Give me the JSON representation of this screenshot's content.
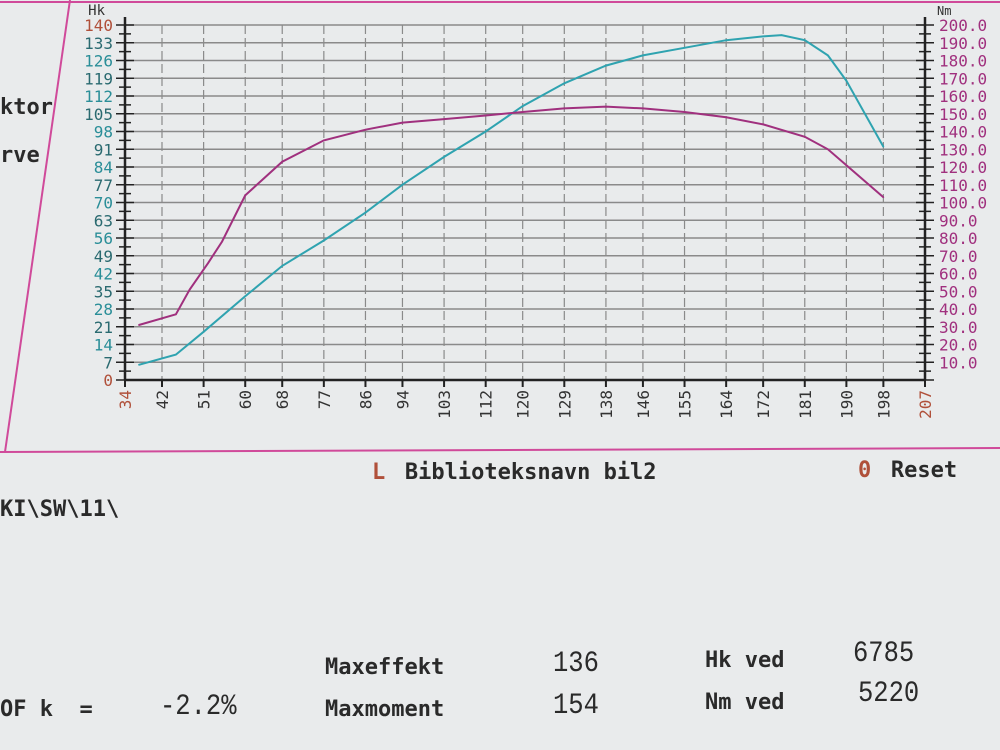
{
  "side_fragments": {
    "line1": "ktor",
    "line2": "rve",
    "path": "KI\\SW\\11\\",
    "factor_label": "OF k  =",
    "factor_value": "-2.2%"
  },
  "menu": {
    "library_key": "L",
    "library_label": "Biblioteksnavn bil2",
    "reset_key": "0",
    "reset_label": "Reset"
  },
  "results": {
    "max_power_label": "Maxeffekt",
    "max_power_value": "136",
    "max_torque_label": "Maxmoment",
    "max_torque_value": "154",
    "hp_at_label": "Hk ved",
    "hp_at_value": "6785",
    "nm_at_label": "Nm ved",
    "nm_at_value": "5220"
  },
  "colors": {
    "power": "#2fa3b0",
    "torque": "#a0307e",
    "frame": "#d04a9a",
    "grid": "#8a8a8a",
    "accent_label": "#b0503a"
  },
  "chart_data": {
    "type": "line",
    "grid": true,
    "xlabel": "",
    "x_ticks": [
      34,
      42,
      51,
      60,
      68,
      77,
      86,
      94,
      103,
      112,
      120,
      129,
      138,
      146,
      155,
      164,
      172,
      181,
      190,
      198,
      207
    ],
    "xlim": [
      34,
      207
    ],
    "y_left": {
      "label": "Hk",
      "ylim": [
        0,
        140
      ],
      "ticks": [
        0,
        7,
        14,
        21,
        28,
        35,
        42,
        49,
        56,
        63,
        70,
        77,
        84,
        91,
        98,
        105,
        112,
        119,
        126,
        133,
        140
      ]
    },
    "y_right": {
      "label": "Nm",
      "ylim": [
        0,
        200
      ],
      "ticks": [
        "200.0",
        "190.0",
        "180.0",
        "170.0",
        "160.0",
        "150.0",
        "140.0",
        "130.0",
        "120.0",
        "110.0",
        "100.0",
        "90.0",
        "80.0",
        "70.0",
        "60.0",
        "50.0",
        "40.0",
        "30.0",
        "20.0",
        "10.0"
      ]
    },
    "series": [
      {
        "axis": "left",
        "color": "#2fa3b0",
        "x": [
          37,
          45,
          51,
          60,
          68,
          77,
          86,
          94,
          103,
          112,
          120,
          129,
          138,
          146,
          155,
          164,
          172,
          176,
          181,
          186,
          190,
          194,
          198
        ],
        "y": [
          6,
          10,
          19,
          33,
          45,
          55,
          66,
          77,
          88,
          98,
          108,
          117,
          124,
          128,
          131,
          134,
          135.5,
          136,
          134,
          128,
          118,
          105,
          92
        ]
      },
      {
        "axis": "right",
        "color": "#a0307e",
        "x": [
          37,
          45,
          48,
          52,
          55,
          60,
          68,
          77,
          86,
          94,
          103,
          112,
          120,
          129,
          138,
          146,
          155,
          164,
          172,
          181,
          186,
          190,
          194,
          198
        ],
        "y": [
          31,
          37,
          51,
          66,
          78,
          104,
          123,
          135,
          141,
          145,
          147,
          149,
          151,
          153,
          154,
          153,
          151,
          148,
          144,
          137,
          130,
          121,
          112,
          103
        ]
      }
    ]
  }
}
